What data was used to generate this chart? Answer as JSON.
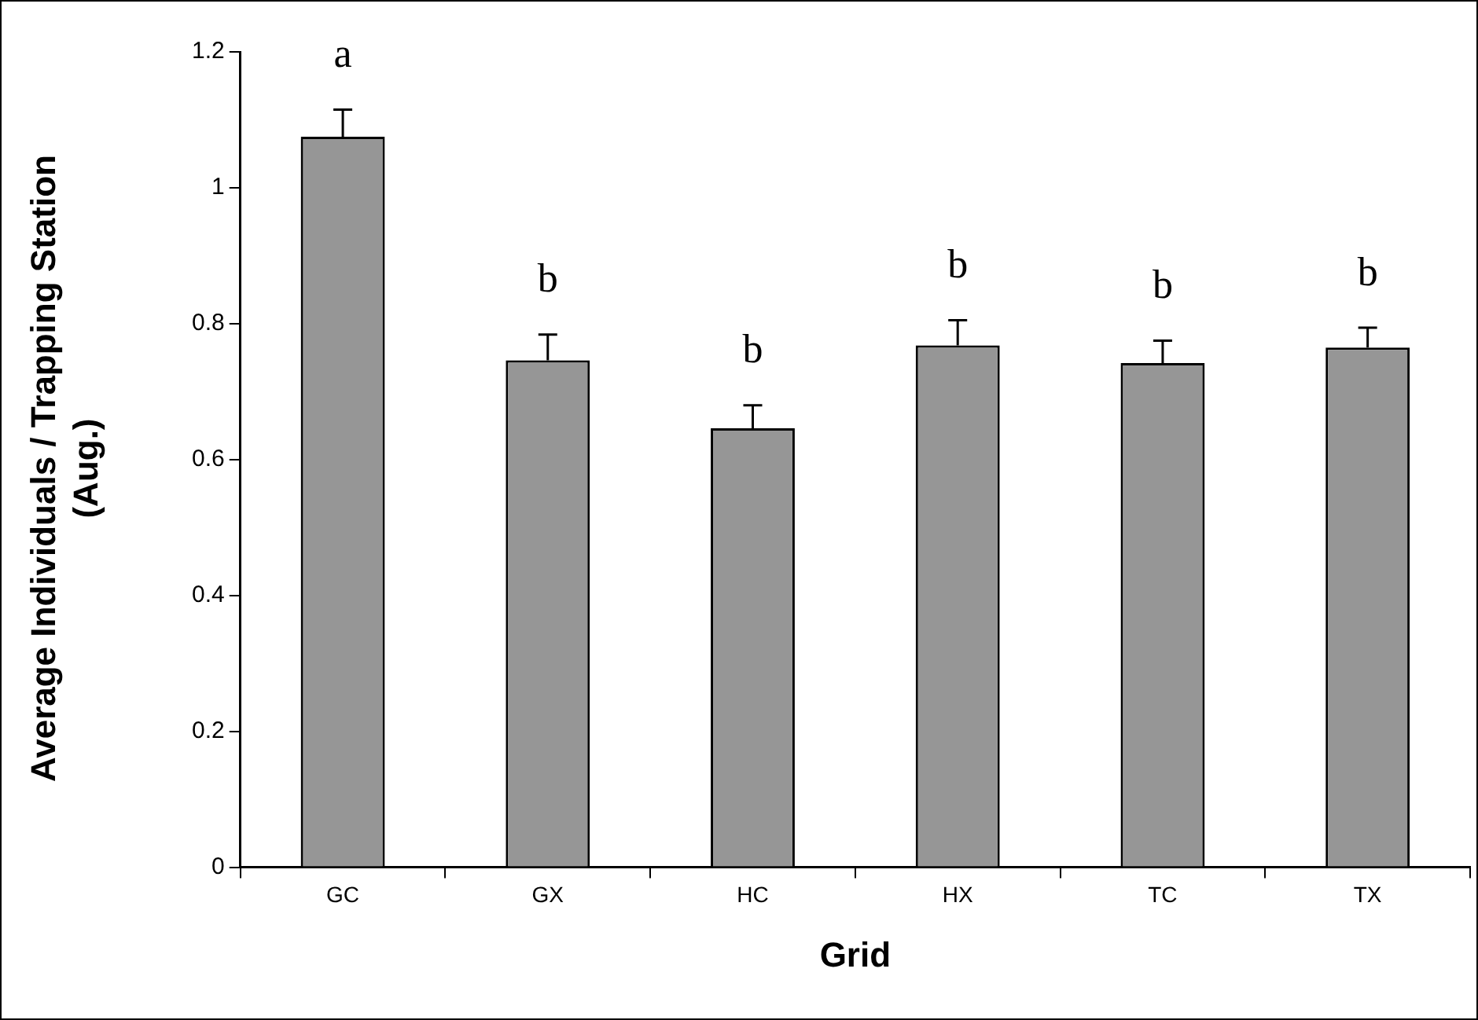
{
  "chart_data": {
    "type": "bar",
    "xlabel": "Grid",
    "ylabel": "Average Individuals / Trapping Station (Aug.)",
    "categories": [
      "GC",
      "GX",
      "HC",
      "HX",
      "TC",
      "TX"
    ],
    "values": [
      1.075,
      0.746,
      0.646,
      0.768,
      0.742,
      0.765
    ],
    "errors": [
      [
        1.075,
        1.115
      ],
      [
        0.746,
        0.784
      ],
      [
        0.646,
        0.68
      ],
      [
        0.768,
        0.805
      ],
      [
        0.742,
        0.775
      ],
      [
        0.765,
        0.794
      ]
    ],
    "color": "#969696",
    "ylim": [
      0,
      1.2
    ],
    "yticks": [
      0,
      0.2,
      0.4,
      0.6,
      0.8,
      1,
      1.2
    ],
    "grid": false,
    "legend": false,
    "annotations": [
      "a",
      "b",
      "b",
      "b",
      "b",
      "b"
    ]
  }
}
